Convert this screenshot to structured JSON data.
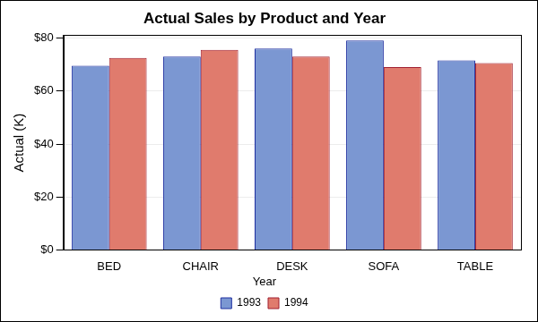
{
  "chart_data": {
    "type": "bar",
    "title": "Actual Sales by Product and Year",
    "y_label": "Actual (K)",
    "categories": [
      "BED",
      "CHAIR",
      "DESK",
      "SOFA",
      "TABLE"
    ],
    "series": [
      {
        "name": "1993",
        "color": "#7b97d2",
        "values": [
          69.5,
          73,
          76,
          79,
          71.5
        ]
      },
      {
        "name": "1994",
        "color": "#e07b6d",
        "values": [
          72.5,
          75.5,
          73,
          69,
          70.5
        ]
      }
    ],
    "ylim": [
      0,
      81
    ],
    "yticks": [
      {
        "value": 0,
        "label": "$0"
      },
      {
        "value": 20,
        "label": "$20"
      },
      {
        "value": 40,
        "label": "$40"
      },
      {
        "value": 60,
        "label": "$60"
      },
      {
        "value": 80,
        "label": "$80"
      }
    ],
    "grid": true,
    "legend": "bottom",
    "legend_title": "Year"
  }
}
